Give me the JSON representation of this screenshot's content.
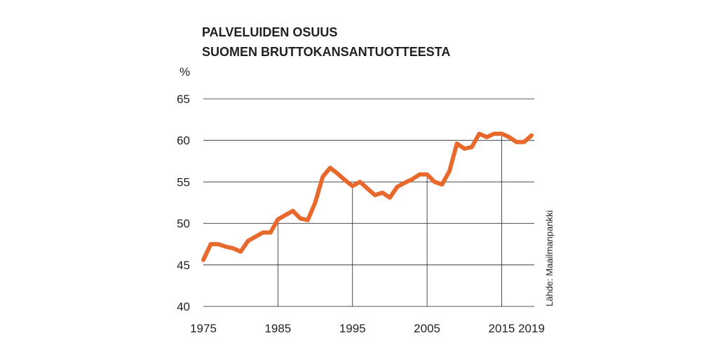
{
  "chart_data": {
    "type": "line",
    "title": "PALVELUIDEN OSUUS",
    "subtitle": "SUOMEN BRUTTOKANSANTUOTTEESTA",
    "ylabel": "%",
    "xlabel": "",
    "source": "Lähde: Maailmanpankki",
    "xlim": [
      1975,
      2019
    ],
    "ylim": [
      40,
      65
    ],
    "yticks": [
      40,
      45,
      50,
      55,
      60,
      65
    ],
    "xticks": [
      1975,
      1985,
      1995,
      2005,
      2015,
      2019
    ],
    "ygrid": [
      45,
      50,
      55,
      60,
      65
    ],
    "xgrid": [
      1985,
      1995,
      2005,
      2015
    ],
    "color": "#e8692c",
    "series": [
      {
        "x": [
          1975,
          1976,
          1977,
          1978,
          1979,
          1980,
          1981,
          1982,
          1983,
          1984,
          1985,
          1986,
          1987,
          1988,
          1989,
          1990,
          1991,
          1992,
          1993,
          1994,
          1995,
          1996,
          1997,
          1998,
          1999,
          2000,
          2001,
          2002,
          2003,
          2004,
          2005,
          2006,
          2007,
          2008,
          2009,
          2010,
          2011,
          2012,
          2013,
          2014,
          2015,
          2016,
          2017,
          2018,
          2019
        ],
        "values": [
          45.6,
          47.5,
          47.5,
          47.2,
          47.0,
          46.6,
          47.9,
          48.4,
          48.9,
          48.9,
          50.5,
          51.0,
          51.5,
          50.6,
          50.4,
          52.5,
          55.6,
          56.7,
          56.0,
          55.2,
          54.5,
          55.0,
          54.2,
          53.4,
          53.7,
          53.1,
          54.4,
          54.9,
          55.3,
          55.9,
          55.9,
          55.0,
          54.7,
          56.3,
          59.6,
          59.0,
          59.2,
          60.8,
          60.4,
          60.8,
          60.8,
          60.4,
          59.8,
          59.8,
          60.6
        ]
      }
    ]
  }
}
